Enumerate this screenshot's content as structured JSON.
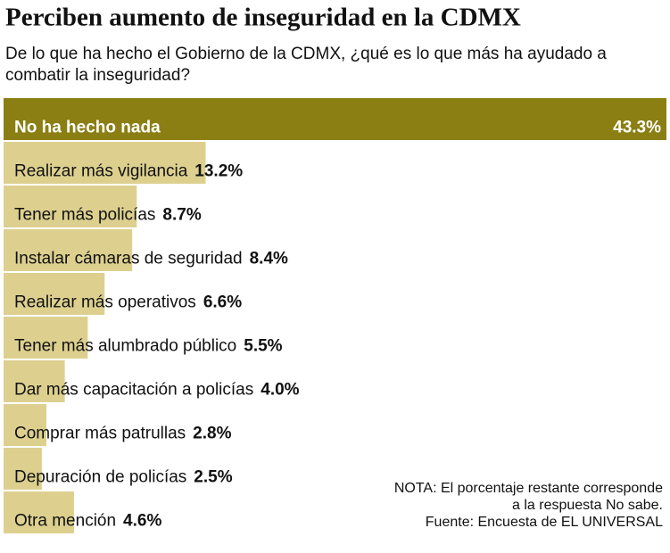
{
  "chart_data": {
    "type": "bar",
    "orientation": "horizontal",
    "title": "Perciben aumento de inseguridad en la CDMX",
    "subtitle": [
      "De lo que ha hecho el Gobierno de la CDMX, ¿qué es lo que más ha ayudado a",
      "combatir la inseguridad?"
    ],
    "categories": [
      "No ha hecho nada",
      "Realizar más vigilancia",
      "Tener más policías",
      "Instalar cámaras de seguridad",
      "Realizar más operativos",
      "Tener más alumbrado público",
      "Dar más capacitación a policías",
      "Comprar más patrullas",
      "Depuración de policías",
      "Otra mención"
    ],
    "values": [
      43.3,
      13.2,
      8.7,
      8.4,
      6.6,
      5.5,
      4.0,
      2.8,
      2.5,
      4.6
    ],
    "value_labels": [
      "43.3%",
      "13.2%",
      "8.7%",
      "8.4%",
      "6.6%",
      "5.5%",
      "4.0%",
      "2.8%",
      "2.5%",
      "4.6%"
    ],
    "colors": [
      "#8b7f14",
      "#ddd08f",
      "#ddd08f",
      "#ddd08f",
      "#ddd08f",
      "#ddd08f",
      "#ddd08f",
      "#ddd08f",
      "#ddd08f",
      "#ddd08f"
    ],
    "note": [
      "NOTA: El porcentaje restante corresponde",
      "a la respuesta No sabe.",
      "Fuente: Encuesta de EL UNIVERSAL"
    ]
  }
}
